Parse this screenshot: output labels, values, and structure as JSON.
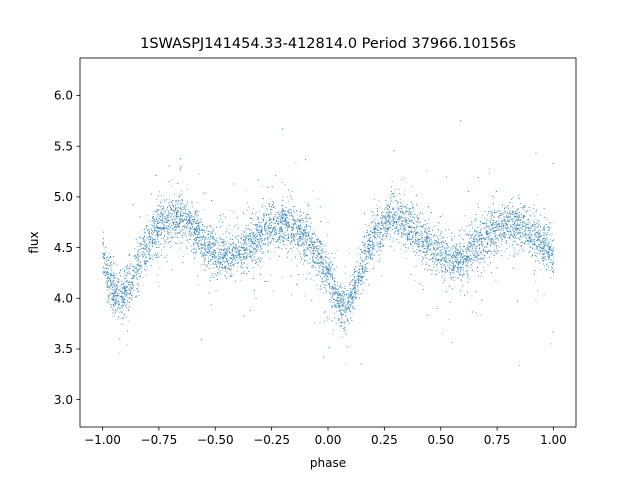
{
  "chart_data": {
    "type": "scatter",
    "title": "1SWASPJ141454.33-412814.0 Period 37966.10156s",
    "xlabel": "phase",
    "ylabel": "flux",
    "xlim": [
      -1.1,
      1.1
    ],
    "ylim": [
      2.73,
      6.37
    ],
    "xticks": [
      -1.0,
      -0.75,
      -0.5,
      -0.25,
      0.0,
      0.25,
      0.5,
      0.75,
      1.0
    ],
    "xtick_labels": [
      "−1.00",
      "−0.75",
      "−0.50",
      "−0.25",
      "0.00",
      "0.25",
      "0.50",
      "0.75",
      "1.00"
    ],
    "yticks": [
      3.0,
      3.5,
      4.0,
      4.5,
      5.0,
      5.5,
      6.0
    ],
    "ytick_labels": [
      "3.0",
      "3.5",
      "4.0",
      "4.5",
      "5.0",
      "5.5",
      "6.0"
    ],
    "grid": false,
    "marker_color": "#1f77b4",
    "series": [
      {
        "x": [
          -1.0,
          -0.95,
          -0.9,
          -0.85,
          -0.8,
          -0.75,
          -0.7,
          -0.65,
          -0.6,
          -0.55,
          -0.5,
          -0.45,
          -0.4,
          -0.35,
          -0.3,
          -0.25,
          -0.2,
          -0.15,
          -0.1,
          -0.05,
          0.0,
          0.05,
          0.08,
          0.1,
          0.15,
          0.2,
          0.25,
          0.3,
          0.35,
          0.4,
          0.45,
          0.5,
          0.55,
          0.6,
          0.65,
          0.7,
          0.75,
          0.8,
          0.85,
          0.9,
          0.95,
          1.0
        ],
        "y": [
          4.4,
          4.05,
          4.05,
          4.3,
          4.55,
          4.72,
          4.8,
          4.8,
          4.72,
          4.55,
          4.45,
          4.4,
          4.45,
          4.55,
          4.65,
          4.72,
          4.73,
          4.7,
          4.6,
          4.45,
          4.2,
          3.95,
          3.9,
          4.0,
          4.35,
          4.6,
          4.75,
          4.8,
          4.75,
          4.62,
          4.5,
          4.45,
          4.4,
          4.4,
          4.5,
          4.62,
          4.7,
          4.74,
          4.72,
          4.65,
          4.55,
          4.45
        ]
      }
    ]
  }
}
